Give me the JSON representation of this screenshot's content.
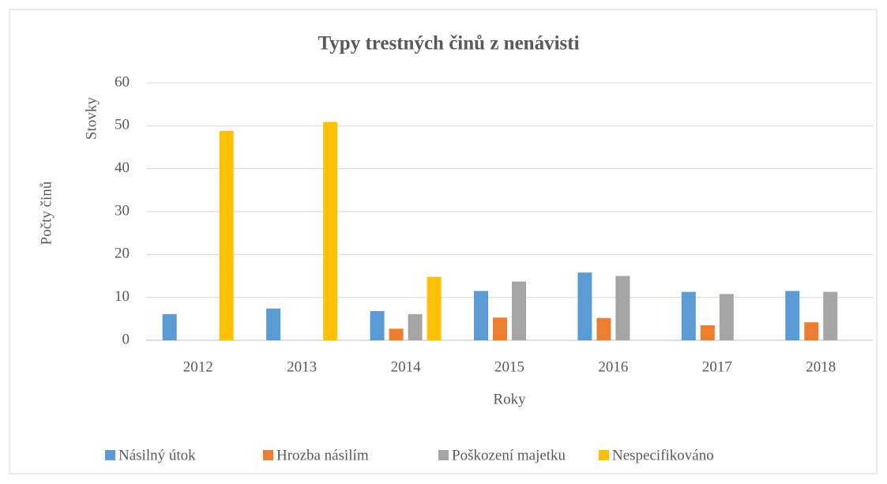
{
  "chart_data": {
    "type": "bar",
    "title": "Typy trestných činů z nenávisti",
    "display_unit": "Stovky",
    "y_label": "Počty činů",
    "x_label": "Roky",
    "categories": [
      "2012",
      "2013",
      "2014",
      "2015",
      "2016",
      "2017",
      "2018"
    ],
    "series": [
      {
        "name": "Násilný útok",
        "color": "#5b9bd5",
        "values": [
          6.1,
          7.4,
          6.8,
          11.5,
          15.8,
          11.3,
          11.5
        ]
      },
      {
        "name": "Hrozba násilím",
        "color": "#ed7d31",
        "values": [
          null,
          null,
          2.7,
          5.3,
          5.2,
          3.5,
          4.2
        ]
      },
      {
        "name": "Poškození majetku",
        "color": "#a5a5a5",
        "values": [
          null,
          null,
          6.1,
          13.7,
          15.0,
          10.8,
          11.3
        ]
      },
      {
        "name": "Nespecifikováno",
        "color": "#ffc000",
        "values": [
          48.8,
          50.9,
          14.8,
          null,
          null,
          null,
          null
        ]
      }
    ],
    "ylim": [
      0,
      60
    ],
    "yticks": [
      0,
      10,
      20,
      30,
      40,
      50,
      60
    ],
    "grid": true,
    "legend": "bottom"
  }
}
